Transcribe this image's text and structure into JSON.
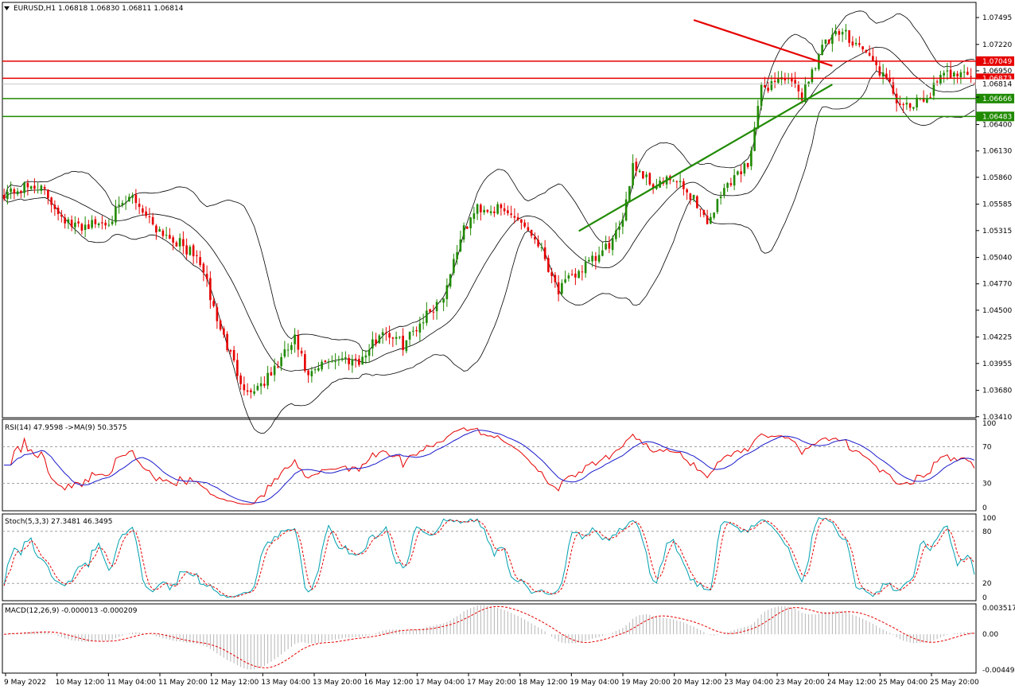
{
  "main": {
    "title": "EURUSD,H1  1.06818 1.06830 1.06811 1.06814",
    "price_ticks": [
      "1.07495",
      "1.07220",
      "1.06950",
      "1.06680",
      "1.06400",
      "1.06130",
      "1.05860",
      "1.05585",
      "1.05315",
      "1.05040",
      "1.04770",
      "1.04500",
      "1.04225",
      "1.03955",
      "1.03680",
      "1.03410"
    ],
    "price_tick_values": [
      1.07495,
      1.0722,
      1.0695,
      1.0668,
      1.064,
      1.0613,
      1.0586,
      1.05585,
      1.05315,
      1.0504,
      1.0477,
      1.045,
      1.04225,
      1.03955,
      1.0368,
      1.0341
    ],
    "ylim": [
      1.034,
      1.0765
    ],
    "levels": [
      {
        "label": "1.07049",
        "price": 1.07049,
        "color": "#e60000",
        "kind": "resistance"
      },
      {
        "label": "1.06873",
        "price": 1.06873,
        "color": "#e60000",
        "kind": "resistance"
      },
      {
        "label": "1.06666",
        "price": 1.06666,
        "color": "#1f8a00",
        "kind": "support"
      },
      {
        "label": "1.06483",
        "price": 1.06483,
        "color": "#1f8a00",
        "kind": "support"
      }
    ],
    "current_price": {
      "label": "1.06814",
      "price": 1.06814
    },
    "trendlines": [
      {
        "color": "#e60000",
        "from": {
          "bar": 204,
          "price": 1.0747
        },
        "to": {
          "bar": 245,
          "price": 1.07
        }
      },
      {
        "color": "#1f8a00",
        "from": {
          "bar": 170,
          "price": 1.0531
        },
        "to": {
          "bar": 245,
          "price": 1.0681
        }
      }
    ]
  },
  "x_labels": [
    "9 May 2022",
    "10 May 12:00",
    "11 May 04:00",
    "11 May 20:00",
    "12 May 12:00",
    "13 May 04:00",
    "13 May 20:00",
    "16 May 12:00",
    "17 May 04:00",
    "17 May 20:00",
    "18 May 12:00",
    "19 May 04:00",
    "19 May 20:00",
    "20 May 12:00",
    "23 May 04:00",
    "23 May 20:00",
    "24 May 12:00",
    "25 May 04:00",
    "25 May 20:00"
  ],
  "rsi": {
    "title": "RSI(14) 47.9598  ->MA(9) 50.3575",
    "ticks": [
      "100",
      "70",
      "30",
      "0"
    ],
    "tick_values": [
      100,
      70,
      30,
      0
    ]
  },
  "stoch": {
    "title": "Stoch(5,3,3) 27.3481 46.3495",
    "ticks": [
      "100",
      "80",
      "20",
      "0"
    ],
    "tick_values": [
      100,
      80,
      20,
      0
    ]
  },
  "macd": {
    "title": "MACD(12,26,9) -0.000013 -0.000209",
    "ticks": [
      "0.003517",
      "0.00",
      "-0.004494"
    ],
    "tick_values": [
      0.003517,
      0,
      -0.004494
    ]
  },
  "colors": {
    "bull": "#1f8a00",
    "bear": "#e60000",
    "bands": "#000000",
    "rsi": "#e60000",
    "rsi_ma": "#1a1acc",
    "stoch_main": "#00a0b0",
    "stoch_signal": "#e60000",
    "macd_hist": "#b4b4b4",
    "macd_signal": "#e60000"
  },
  "chart_data": {
    "type": "candlestick",
    "symbol": "EURUSD",
    "timeframe": "H1",
    "ohlc_last": {
      "open": 1.06818,
      "high": 1.0683,
      "low": 1.06811,
      "close": 1.06814
    },
    "close_anchors": [
      {
        "bar": 0,
        "price": 1.057
      },
      {
        "bar": 10,
        "price": 1.0578
      },
      {
        "bar": 20,
        "price": 1.0535
      },
      {
        "bar": 30,
        "price": 1.054
      },
      {
        "bar": 38,
        "price": 1.0566
      },
      {
        "bar": 45,
        "price": 1.0535
      },
      {
        "bar": 52,
        "price": 1.0518
      },
      {
        "bar": 58,
        "price": 1.05
      },
      {
        "bar": 63,
        "price": 1.044
      },
      {
        "bar": 68,
        "price": 1.0395
      },
      {
        "bar": 72,
        "price": 1.0365
      },
      {
        "bar": 78,
        "price": 1.038
      },
      {
        "bar": 86,
        "price": 1.042
      },
      {
        "bar": 90,
        "price": 1.038
      },
      {
        "bar": 96,
        "price": 1.04
      },
      {
        "bar": 106,
        "price": 1.04
      },
      {
        "bar": 112,
        "price": 1.043
      },
      {
        "bar": 118,
        "price": 1.0415
      },
      {
        "bar": 124,
        "price": 1.0442
      },
      {
        "bar": 130,
        "price": 1.0465
      },
      {
        "bar": 135,
        "price": 1.0525
      },
      {
        "bar": 140,
        "price": 1.0555
      },
      {
        "bar": 146,
        "price": 1.0553
      },
      {
        "bar": 152,
        "price": 1.0545
      },
      {
        "bar": 158,
        "price": 1.052
      },
      {
        "bar": 164,
        "price": 1.047
      },
      {
        "bar": 170,
        "price": 1.049
      },
      {
        "bar": 176,
        "price": 1.0505
      },
      {
        "bar": 182,
        "price": 1.053
      },
      {
        "bar": 186,
        "price": 1.06
      },
      {
        "bar": 192,
        "price": 1.0578
      },
      {
        "bar": 198,
        "price": 1.0583
      },
      {
        "bar": 204,
        "price": 1.0565
      },
      {
        "bar": 208,
        "price": 1.054
      },
      {
        "bar": 214,
        "price": 1.058
      },
      {
        "bar": 220,
        "price": 1.06
      },
      {
        "bar": 224,
        "price": 1.0675
      },
      {
        "bar": 230,
        "price": 1.069
      },
      {
        "bar": 236,
        "price": 1.067
      },
      {
        "bar": 242,
        "price": 1.072
      },
      {
        "bar": 248,
        "price": 1.0735
      },
      {
        "bar": 254,
        "price": 1.0718
      },
      {
        "bar": 260,
        "price": 1.069
      },
      {
        "bar": 266,
        "price": 1.0655
      },
      {
        "bar": 272,
        "price": 1.0665
      },
      {
        "bar": 278,
        "price": 1.069
      },
      {
        "bar": 284,
        "price": 1.0697
      },
      {
        "bar": 287,
        "price": 1.06814
      }
    ]
  }
}
